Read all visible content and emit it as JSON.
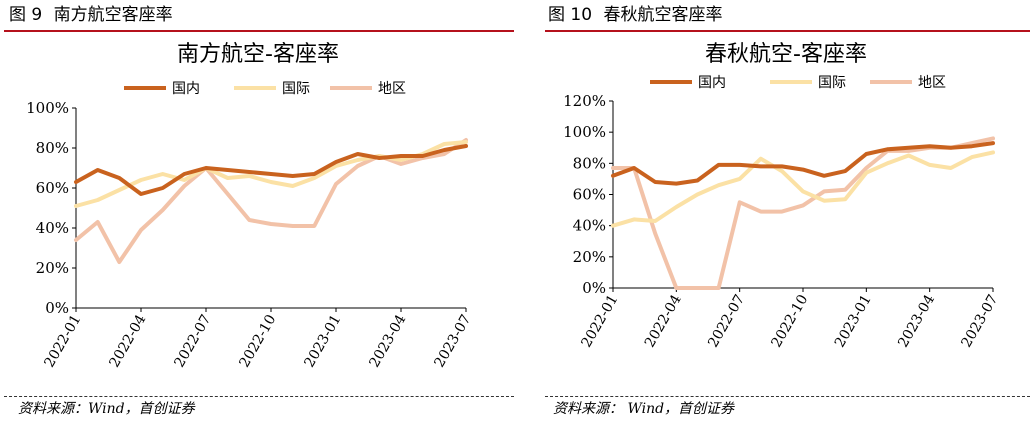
{
  "figures": [
    {
      "figure_no": "图 9",
      "figure_title": "南方航空客座率",
      "source": "资料来源：Wind，首创证券"
    },
    {
      "figure_no": "图 10",
      "figure_title": "春秋航空客座率",
      "source": "资料来源：  Wind，首创证券"
    }
  ],
  "colors": {
    "domestic": "#c9621e",
    "international": "#fbe1a5",
    "regional": "#f2c2a8",
    "header_rule": "#b5111c"
  },
  "chart_data": [
    {
      "type": "line",
      "title": "南方航空-客座率",
      "xlabel": "",
      "ylabel": "",
      "ylim": [
        0,
        100
      ],
      "y_ticks": [
        "0%",
        "20%",
        "40%",
        "60%",
        "80%",
        "100%"
      ],
      "x_tick_labels": [
        "2022-01",
        "2022-04",
        "2022-07",
        "2022-10",
        "2023-01",
        "2023-04",
        "2023-07"
      ],
      "x": [
        "2022-01",
        "2022-02",
        "2022-03",
        "2022-04",
        "2022-05",
        "2022-06",
        "2022-07",
        "2022-08",
        "2022-09",
        "2022-10",
        "2022-11",
        "2022-12",
        "2023-01",
        "2023-02",
        "2023-03",
        "2023-04",
        "2023-05",
        "2023-06",
        "2023-07"
      ],
      "legend_position": "top",
      "grid": false,
      "series": [
        {
          "name": "国内",
          "color_key": "domestic",
          "values": [
            63,
            69,
            65,
            57,
            60,
            67,
            70,
            69,
            68,
            67,
            66,
            67,
            73,
            77,
            75,
            76,
            76,
            79,
            81
          ]
        },
        {
          "name": "国际",
          "color_key": "international",
          "values": [
            51,
            54,
            59,
            64,
            67,
            64,
            70,
            65,
            66,
            63,
            61,
            65,
            71,
            74,
            76,
            74,
            77,
            82,
            83
          ]
        },
        {
          "name": "地区",
          "color_key": "regional",
          "values": [
            34,
            43,
            23,
            39,
            49,
            61,
            70,
            57,
            44,
            42,
            41,
            41,
            62,
            71,
            76,
            72,
            75,
            77,
            84
          ]
        }
      ]
    },
    {
      "type": "line",
      "title": "春秋航空-客座率",
      "xlabel": "",
      "ylabel": "",
      "ylim": [
        0,
        120
      ],
      "y_ticks": [
        "0%",
        "20%",
        "40%",
        "60%",
        "80%",
        "100%",
        "120%"
      ],
      "x_tick_labels": [
        "2022-01",
        "2022-04",
        "2022-07",
        "2022-10",
        "2023-01",
        "2023-04",
        "2023-07"
      ],
      "x": [
        "2022-01",
        "2022-02",
        "2022-03",
        "2022-04",
        "2022-05",
        "2022-06",
        "2022-07",
        "2022-08",
        "2022-09",
        "2022-10",
        "2022-11",
        "2022-12",
        "2023-01",
        "2023-02",
        "2023-03",
        "2023-04",
        "2023-05",
        "2023-06",
        "2023-07"
      ],
      "legend_position": "top",
      "grid": false,
      "series": [
        {
          "name": "国内",
          "color_key": "domestic",
          "values": [
            72,
            77,
            68,
            67,
            69,
            79,
            79,
            78,
            78,
            76,
            72,
            75,
            86,
            89,
            90,
            91,
            90,
            91,
            93
          ]
        },
        {
          "name": "国际",
          "color_key": "international",
          "values": [
            40,
            44,
            43,
            52,
            60,
            66,
            70,
            83,
            75,
            62,
            56,
            57,
            74,
            80,
            85,
            79,
            77,
            84,
            87
          ]
        },
        {
          "name": "地区",
          "color_key": "regional",
          "values": [
            77,
            77,
            35,
            0,
            0,
            0,
            55,
            49,
            49,
            53,
            62,
            63,
            77,
            88,
            88,
            90,
            90,
            93,
            96
          ]
        }
      ]
    }
  ]
}
